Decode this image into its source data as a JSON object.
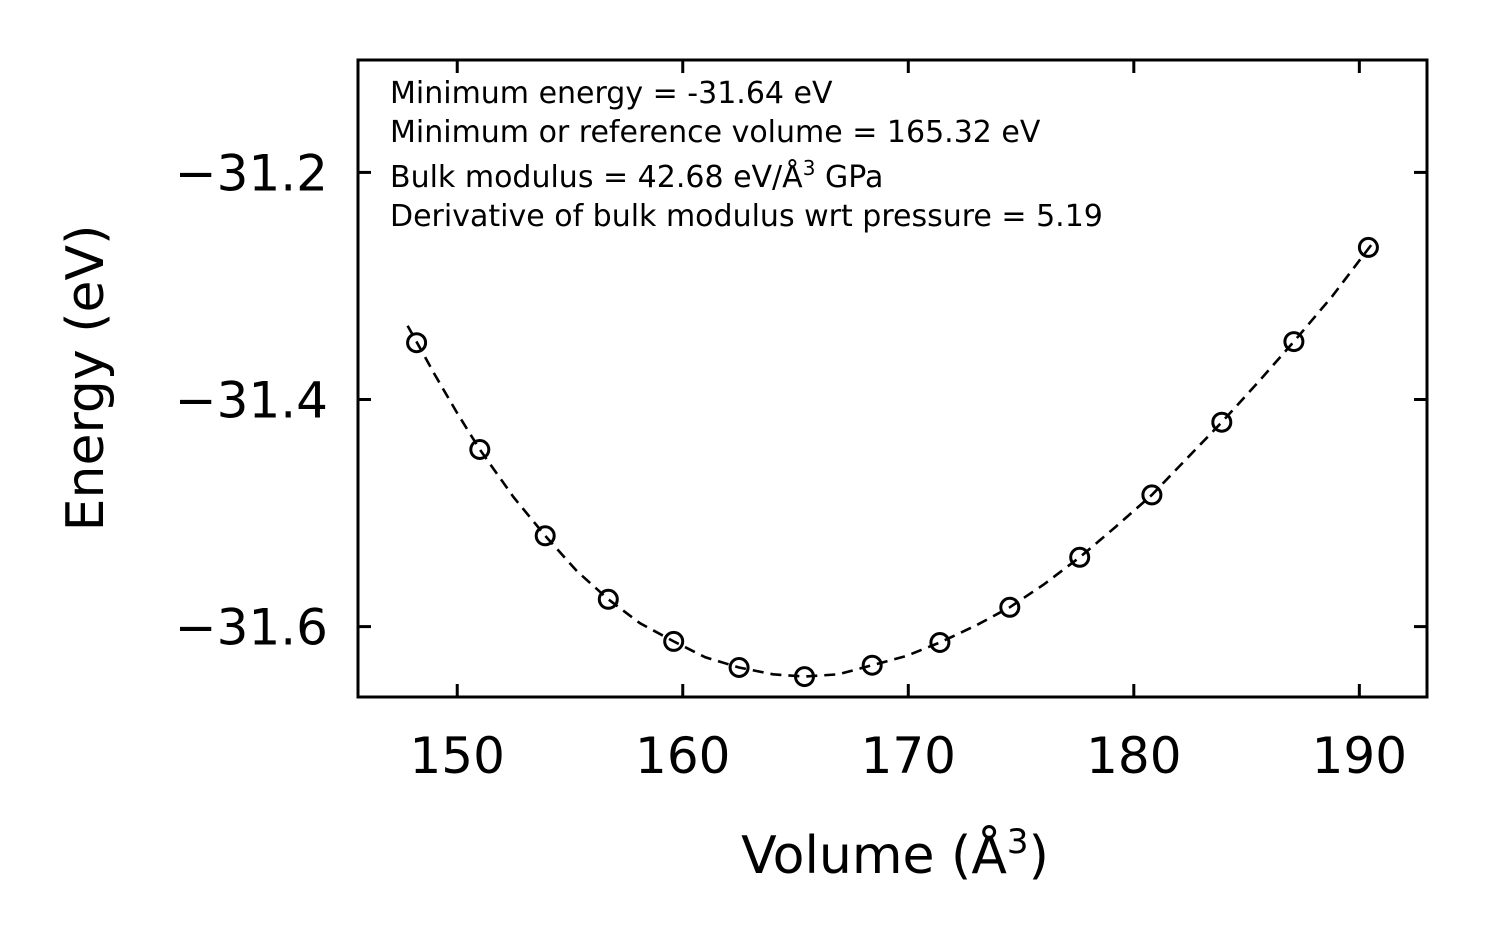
{
  "chart_data": {
    "type": "scatter",
    "title": "",
    "xlabel_main": "Volume (Å",
    "xlabel_sup": "3",
    "xlabel_tail": ")",
    "ylabel": "Energy (eV)",
    "xlim": [
      145.6,
      193.0
    ],
    "ylim": [
      -31.662,
      -31.101
    ],
    "xticks": [
      150,
      160,
      170,
      180,
      190
    ],
    "xtick_labels": [
      "150",
      "160",
      "170",
      "180",
      "190"
    ],
    "yticks": [
      -31.2,
      -31.4,
      -31.6
    ],
    "ytick_labels": [
      "−31.2",
      "−31.4",
      "−31.6"
    ],
    "grid": false,
    "annotations": [
      {
        "text": "Minimum energy = -31.64 eV"
      },
      {
        "text": "Minimum or reference volume = 165.32 eV"
      },
      {
        "text": "Bulk modulus = 42.68 eV/Å",
        "sup": "3",
        "tail": " GPa"
      },
      {
        "text": "Derivative of bulk modulus wrt pressure = 5.19"
      }
    ],
    "series": [
      {
        "name": "data",
        "style": "open-circle",
        "color": "#000000",
        "x": [
          148.2,
          151.0,
          153.9,
          156.7,
          159.6,
          162.5,
          165.4,
          168.4,
          171.4,
          174.5,
          177.6,
          180.8,
          183.9,
          187.1,
          190.4
        ],
        "y": [
          -31.35,
          -31.444,
          -31.52,
          -31.576,
          -31.613,
          -31.636,
          -31.644,
          -31.634,
          -31.614,
          -31.583,
          -31.539,
          -31.484,
          -31.42,
          -31.349,
          -31.266
        ]
      },
      {
        "name": "fit",
        "style": "dashed-line",
        "color": "#000000",
        "x": [
          147.8,
          149.0,
          150.0,
          151.0,
          152.5,
          153.9,
          155.3,
          156.7,
          158.1,
          159.6,
          161.0,
          162.5,
          164.0,
          165.4,
          166.9,
          168.4,
          169.9,
          171.4,
          173.0,
          174.5,
          176.0,
          177.6,
          179.2,
          180.8,
          182.3,
          183.9,
          185.5,
          187.1,
          188.8,
          190.6
        ],
        "y": [
          -31.335,
          -31.378,
          -31.412,
          -31.444,
          -31.486,
          -31.52,
          -31.551,
          -31.576,
          -31.597,
          -31.613,
          -31.627,
          -31.636,
          -31.642,
          -31.644,
          -31.642,
          -31.634,
          -31.626,
          -31.614,
          -31.599,
          -31.583,
          -31.563,
          -31.539,
          -31.512,
          -31.484,
          -31.453,
          -31.42,
          -31.385,
          -31.349,
          -31.309,
          -31.262
        ]
      }
    ]
  }
}
